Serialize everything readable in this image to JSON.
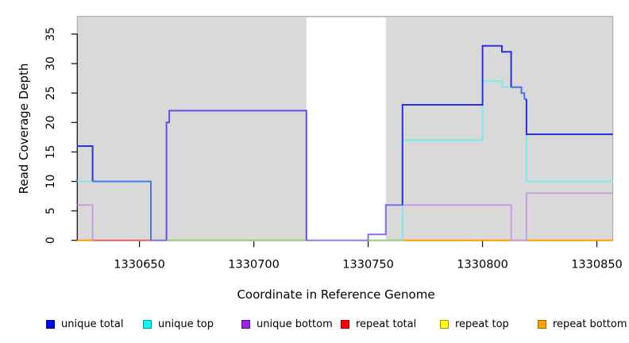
{
  "axes": {
    "x_title": "Coordinate in Reference Genome",
    "y_title": "Read Coverage Depth"
  },
  "legend": {
    "items": [
      {
        "label": "unique total",
        "fill": "#0000ff",
        "border": "#000099"
      },
      {
        "label": "unique top",
        "fill": "#00ffff",
        "border": "#009999"
      },
      {
        "label": "unique bottom",
        "fill": "#a020f0",
        "border": "#5c0d8a"
      },
      {
        "label": "repeat total",
        "fill": "#ff0000",
        "border": "#990000"
      },
      {
        "label": "repeat top",
        "fill": "#ffff00",
        "border": "#999900"
      },
      {
        "label": "repeat bottom",
        "fill": "#ffa500",
        "border": "#996300"
      }
    ]
  },
  "chart_data": {
    "type": "line",
    "subtype": "step-coverage",
    "title": "",
    "xlabel": "Coordinate in Reference Genome",
    "ylabel": "Read Coverage Depth",
    "xlim": [
      1330622.8,
      1330857
    ],
    "ylim": [
      0,
      38
    ],
    "x_ticks": [
      1330650,
      1330700,
      1330750,
      1330800,
      1330850
    ],
    "y_ticks": [
      0,
      5,
      10,
      15,
      20,
      25,
      30,
      35
    ],
    "grid": false,
    "legend_position": "bottom",
    "plot_bg": "#d9d9d9",
    "plot_bg_border": "#a3a3a3",
    "masked_region": [
      1330723,
      1330757.7
    ],
    "series": [
      {
        "name": "unique total",
        "color": "#0000ff",
        "steps": [
          [
            1330622.8,
            16
          ],
          [
            1330629.5,
            10
          ],
          [
            1330655,
            0
          ],
          [
            1330661.8,
            20
          ],
          [
            1330663,
            22
          ],
          [
            1330723,
            0
          ],
          [
            1330750,
            1
          ],
          [
            1330757.7,
            6
          ],
          [
            1330765,
            23
          ],
          [
            1330800,
            33
          ],
          [
            1330808.5,
            32
          ],
          [
            1330812.5,
            26
          ],
          [
            1330817,
            25
          ],
          [
            1330818.3,
            24
          ],
          [
            1330819.2,
            18
          ],
          [
            1330857,
            18
          ]
        ]
      },
      {
        "name": "unique top",
        "color": "#00ffff",
        "steps": [
          [
            1330622.8,
            10
          ],
          [
            1330655,
            0
          ],
          [
            1330765,
            17
          ],
          [
            1330800,
            27
          ],
          [
            1330808.5,
            26
          ],
          [
            1330817,
            25
          ],
          [
            1330818.3,
            24
          ],
          [
            1330819.2,
            10
          ],
          [
            1330857,
            10
          ]
        ]
      },
      {
        "name": "unique bottom",
        "color": "#a020f0",
        "steps": [
          [
            1330622.8,
            6
          ],
          [
            1330629.5,
            0
          ],
          [
            1330661.8,
            20
          ],
          [
            1330663,
            22
          ],
          [
            1330723,
            0
          ],
          [
            1330750,
            1
          ],
          [
            1330757.7,
            6
          ],
          [
            1330812.5,
            0
          ],
          [
            1330819.2,
            8
          ],
          [
            1330857,
            8
          ]
        ]
      },
      {
        "name": "repeat total",
        "color": "#ff0000",
        "steps": [
          [
            1330622.8,
            0
          ],
          [
            1330857,
            0
          ]
        ]
      },
      {
        "name": "repeat top",
        "color": "#ffff00",
        "steps": [
          [
            1330622.8,
            0
          ],
          [
            1330857,
            0
          ]
        ]
      },
      {
        "name": "repeat bottom",
        "color": "#ffa500",
        "steps": [
          [
            1330622.8,
            0
          ],
          [
            1330857,
            0
          ]
        ]
      }
    ],
    "render_layers": [
      {
        "name": "zero-line-orange",
        "color": "#ff9d00",
        "pts": [
          [
            1330622.8,
            0
          ],
          [
            1330857,
            0
          ]
        ]
      },
      {
        "name": "zero-line-pink",
        "color": "#e26a84",
        "pts": [
          [
            1330629.5,
            0
          ],
          [
            1330655,
            0
          ]
        ]
      },
      {
        "name": "zero-line-violet-left",
        "color": "#8878e8",
        "pts": [
          [
            1330655,
            0
          ],
          [
            1330661.8,
            0
          ]
        ]
      },
      {
        "name": "zero-line-green-left",
        "color": "#93d693",
        "pts": [
          [
            1330661.8,
            0
          ],
          [
            1330723,
            0
          ]
        ]
      },
      {
        "name": "zero-line-violet-gap",
        "color": "#9288ee",
        "pts": [
          [
            1330723,
            0
          ],
          [
            1330750,
            0
          ]
        ]
      },
      {
        "name": "zero-line-green-right",
        "color": "#93d693",
        "pts": [
          [
            1330750,
            0
          ],
          [
            1330765,
            0
          ]
        ]
      },
      {
        "name": "unique-bottom-left",
        "color": "#c49ee6",
        "pts": [
          [
            1330622.8,
            6
          ],
          [
            1330629.5,
            6
          ],
          [
            1330629.5,
            0
          ]
        ]
      },
      {
        "name": "unique-bottom-right",
        "color": "#c49ee6",
        "pts": [
          [
            1330765,
            6
          ],
          [
            1330812.5,
            6
          ],
          [
            1330812.5,
            0
          ],
          [
            1330819.2,
            0
          ],
          [
            1330819.2,
            8
          ],
          [
            1330857,
            8
          ]
        ]
      },
      {
        "name": "unique-top-left",
        "color": "#7ce9eb",
        "pts": [
          [
            1330622.8,
            10
          ],
          [
            1330629.5,
            10
          ]
        ]
      },
      {
        "name": "unique-top-right",
        "color": "#7ce9eb",
        "pts": [
          [
            1330765,
            0
          ],
          [
            1330765,
            17
          ],
          [
            1330800,
            17
          ],
          [
            1330800,
            27
          ],
          [
            1330808.5,
            27
          ],
          [
            1330808.5,
            26
          ],
          [
            1330812.5,
            26
          ]
        ]
      },
      {
        "name": "unique-top-tail",
        "color": "#7ce9eb",
        "pts": [
          [
            1330819.2,
            24
          ],
          [
            1330819.2,
            10
          ],
          [
            1330857,
            10
          ]
        ]
      },
      {
        "name": "unique-total-left",
        "color": "#2d2de6",
        "pts": [
          [
            1330622.8,
            16
          ],
          [
            1330629.5,
            16
          ],
          [
            1330629.5,
            10
          ]
        ]
      },
      {
        "name": "unique-total-over-top",
        "color": "#4478f2",
        "pts": [
          [
            1330629.5,
            10
          ],
          [
            1330655,
            10
          ],
          [
            1330655,
            0
          ]
        ]
      },
      {
        "name": "unique-total-over-bottom",
        "color": "#6450ec",
        "pts": [
          [
            1330661.8,
            0
          ],
          [
            1330661.8,
            20
          ],
          [
            1330663,
            20
          ],
          [
            1330663,
            22
          ],
          [
            1330723,
            22
          ],
          [
            1330723,
            0
          ]
        ]
      },
      {
        "name": "unique-total-gap-steps",
        "color": "#7e70f0",
        "pts": [
          [
            1330750,
            0
          ],
          [
            1330750,
            1
          ],
          [
            1330757.7,
            1
          ],
          [
            1330757.7,
            6
          ],
          [
            1330765,
            6
          ]
        ]
      },
      {
        "name": "unique-total-right-peak",
        "color": "#2d2de6",
        "pts": [
          [
            1330765,
            6
          ],
          [
            1330765,
            23
          ],
          [
            1330800,
            23
          ],
          [
            1330800,
            33
          ],
          [
            1330808.5,
            33
          ],
          [
            1330808.5,
            32
          ],
          [
            1330812.5,
            32
          ],
          [
            1330812.5,
            26
          ]
        ]
      },
      {
        "name": "unique-total-merged-stairs",
        "color": "#3f74f0",
        "pts": [
          [
            1330812.5,
            26
          ],
          [
            1330817,
            26
          ],
          [
            1330817,
            25
          ],
          [
            1330818.3,
            25
          ],
          [
            1330818.3,
            24
          ],
          [
            1330819.2,
            24
          ]
        ]
      },
      {
        "name": "unique-total-tail",
        "color": "#2d2de6",
        "pts": [
          [
            1330819.2,
            24
          ],
          [
            1330819.2,
            18
          ],
          [
            1330857,
            18
          ]
        ]
      }
    ]
  }
}
